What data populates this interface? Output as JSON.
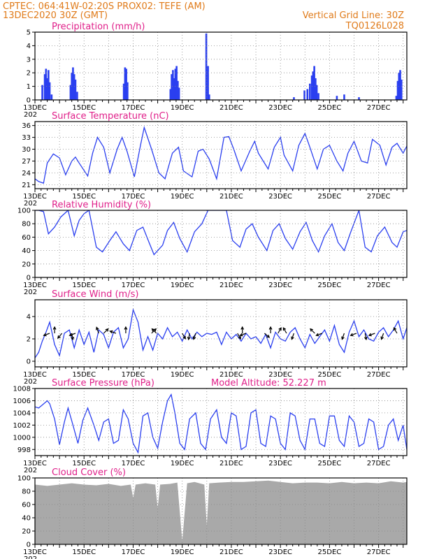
{
  "header": {
    "line1": "CPTEC:    064:41W-02:20S   PROX02: TEFE (AM)",
    "line2": "13DEC2020 30Z (GMT)",
    "grid_note": "Vertical Grid Line: 30Z",
    "run_id": "TQ0126L028"
  },
  "x_axis": {
    "tick_labels": [
      "13DEC",
      "15DEC",
      "17DEC",
      "19DEC",
      "21DEC",
      "23DEC",
      "25DEC",
      "27DEC"
    ],
    "year_label": "202"
  },
  "chart_data": [
    {
      "type": "bar",
      "title": "Precipitation (mm/h)",
      "ylim": [
        0,
        5
      ],
      "yticks": [
        0,
        1,
        2,
        3,
        4,
        5
      ],
      "color": "#2a3ff0",
      "values": [
        [
          0.3,
          1.1
        ],
        [
          0.4,
          1.9
        ],
        [
          0.45,
          2.3
        ],
        [
          0.5,
          1.6
        ],
        [
          0.55,
          2.2
        ],
        [
          0.6,
          1.3
        ],
        [
          0.68,
          0.4
        ],
        [
          1.45,
          1.1
        ],
        [
          1.5,
          2.0
        ],
        [
          1.55,
          2.4
        ],
        [
          1.6,
          1.9
        ],
        [
          1.65,
          1.5
        ],
        [
          1.72,
          0.6
        ],
        [
          3.62,
          1.2
        ],
        [
          3.67,
          2.4
        ],
        [
          3.72,
          2.3
        ],
        [
          3.77,
          1.3
        ],
        [
          5.52,
          0.8
        ],
        [
          5.57,
          1.9
        ],
        [
          5.62,
          2.2
        ],
        [
          5.67,
          1.6
        ],
        [
          5.72,
          2.3
        ],
        [
          5.77,
          2.5
        ],
        [
          5.82,
          1.4
        ],
        [
          5.87,
          0.9
        ],
        [
          6.98,
          4.9
        ],
        [
          7.05,
          2.5
        ],
        [
          7.1,
          0.4
        ],
        [
          10.55,
          0.2
        ],
        [
          10.98,
          0.7
        ],
        [
          11.1,
          0.8
        ],
        [
          11.2,
          1.2
        ],
        [
          11.28,
          1.8
        ],
        [
          11.33,
          2.1
        ],
        [
          11.38,
          2.5
        ],
        [
          11.43,
          1.6
        ],
        [
          11.48,
          1.1
        ],
        [
          11.55,
          0.5
        ],
        [
          12.3,
          0.3
        ],
        [
          12.6,
          0.4
        ],
        [
          13.2,
          0.2
        ],
        [
          14.72,
          0.3
        ],
        [
          14.78,
          1.4
        ],
        [
          14.83,
          2.0
        ],
        [
          14.88,
          2.2
        ],
        [
          14.93,
          1.5
        ]
      ]
    },
    {
      "type": "line",
      "title": "Surface Temperature (nC)",
      "ylim": [
        20,
        37
      ],
      "yticks": [
        21,
        24,
        27,
        30,
        33,
        36
      ],
      "color": "#2a3ff0",
      "x": [
        0,
        0.15,
        0.35,
        0.5,
        0.75,
        1.0,
        1.25,
        1.5,
        1.65,
        1.8,
        2.15,
        2.35,
        2.55,
        2.8,
        3.05,
        3.35,
        3.55,
        3.75,
        4.05,
        4.3,
        4.45,
        4.75,
        5.05,
        5.3,
        5.6,
        5.85,
        6.05,
        6.4,
        6.65,
        6.85,
        7.1,
        7.4,
        7.7,
        7.9,
        8.1,
        8.4,
        8.75,
        8.95,
        9.1,
        9.5,
        9.75,
        10.0,
        10.15,
        10.5,
        10.75,
        11.0,
        11.2,
        11.5,
        11.75,
        12.0,
        12.3,
        12.55,
        12.75,
        13.0,
        13.3,
        13.55,
        13.75,
        14.05,
        14.3,
        14.55,
        14.75,
        15.0,
        15.15
      ],
      "values": [
        22.5,
        21.8,
        21.4,
        26.5,
        28.8,
        27.8,
        23.5,
        27.0,
        28.0,
        26.5,
        23.2,
        29.0,
        33.0,
        30.5,
        24.0,
        30.0,
        33.0,
        29.5,
        23.0,
        31.0,
        35.5,
        30.0,
        24.0,
        22.5,
        29.0,
        30.5,
        24.5,
        23.0,
        29.5,
        30.0,
        27.5,
        22.5,
        33.0,
        33.2,
        30.0,
        24.5,
        29.5,
        32.0,
        29.0,
        25.0,
        30.5,
        33.0,
        28.5,
        24.5,
        31.0,
        34.0,
        30.5,
        25.0,
        30.0,
        31.0,
        27.0,
        24.5,
        29.0,
        32.0,
        27.0,
        26.5,
        32.5,
        31.0,
        26.0,
        30.5,
        31.5,
        29.0,
        30.8
      ]
    },
    {
      "type": "line",
      "title": "Relative Humidity (%)",
      "ylim": [
        0,
        100
      ],
      "yticks": [
        0,
        20,
        40,
        60,
        80,
        100
      ],
      "color": "#2a3ff0",
      "x": [
        0,
        0.15,
        0.35,
        0.55,
        0.8,
        1.05,
        1.35,
        1.6,
        1.8,
        2.0,
        2.2,
        2.5,
        2.75,
        3.05,
        3.3,
        3.6,
        3.85,
        4.15,
        4.4,
        4.65,
        4.85,
        5.2,
        5.4,
        5.65,
        5.9,
        6.2,
        6.5,
        6.8,
        7.05,
        7.35,
        7.55,
        7.8,
        8.05,
        8.35,
        8.6,
        8.85,
        9.1,
        9.45,
        9.7,
        9.95,
        10.2,
        10.5,
        10.8,
        11.05,
        11.3,
        11.55,
        11.8,
        12.1,
        12.35,
        12.6,
        12.85,
        13.2,
        13.45,
        13.7,
        13.95,
        14.25,
        14.55,
        14.75,
        15.0,
        15.15
      ],
      "values": [
        100,
        100,
        98,
        65,
        75,
        90,
        100,
        62,
        85,
        95,
        100,
        45,
        38,
        55,
        68,
        50,
        40,
        70,
        75,
        52,
        34,
        48,
        70,
        82,
        58,
        38,
        68,
        80,
        100,
        100,
        100,
        100,
        55,
        45,
        72,
        80,
        60,
        40,
        70,
        80,
        58,
        42,
        68,
        82,
        55,
        38,
        62,
        80,
        52,
        40,
        66,
        100,
        45,
        38,
        62,
        75,
        52,
        45,
        68,
        70
      ]
    },
    {
      "type": "line",
      "title": "Surface Wind (m/s)",
      "ylim": [
        -0.5,
        5.5
      ],
      "yticks": [
        0,
        2,
        4
      ],
      "color": "#2a3ff0",
      "x": [
        0,
        0.15,
        0.3,
        0.45,
        0.6,
        0.8,
        1.0,
        1.2,
        1.4,
        1.6,
        1.8,
        2.0,
        2.2,
        2.4,
        2.6,
        2.8,
        3.0,
        3.2,
        3.4,
        3.6,
        3.8,
        4.0,
        4.2,
        4.4,
        4.6,
        4.8,
        5.0,
        5.2,
        5.4,
        5.6,
        5.8,
        6.0,
        6.2,
        6.4,
        6.6,
        6.8,
        7.0,
        7.2,
        7.4,
        7.6,
        7.8,
        8.0,
        8.2,
        8.4,
        8.6,
        8.8,
        9.0,
        9.2,
        9.4,
        9.6,
        9.8,
        10.0,
        10.2,
        10.4,
        10.6,
        10.8,
        11.0,
        11.2,
        11.4,
        11.6,
        11.8,
        12.0,
        12.2,
        12.4,
        12.6,
        12.8,
        13.0,
        13.2,
        13.4,
        13.6,
        13.8,
        14.0,
        14.2,
        14.4,
        14.6,
        14.8,
        15.0,
        15.15
      ],
      "values": [
        0.3,
        0.8,
        1.8,
        2.6,
        3.5,
        1.5,
        0.5,
        2.5,
        2.8,
        1.2,
        2.8,
        1.5,
        2.6,
        0.8,
        2.8,
        2.4,
        1.2,
        2.6,
        3.0,
        1.2,
        2.0,
        4.6,
        3.5,
        1.0,
        2.2,
        1.0,
        2.5,
        2.0,
        3.0,
        2.2,
        2.6,
        1.8,
        2.8,
        2.0,
        2.6,
        2.2,
        2.5,
        2.4,
        2.6,
        1.5,
        2.6,
        2.0,
        2.4,
        1.8,
        2.5,
        2.0,
        2.2,
        1.6,
        2.4,
        1.2,
        2.6,
        2.0,
        1.8,
        2.6,
        3.0,
        2.0,
        1.2,
        2.4,
        1.6,
        2.2,
        2.8,
        1.8,
        3.2,
        1.5,
        0.8,
        2.6,
        3.6,
        2.2,
        2.8,
        2.0,
        1.8,
        2.6,
        3.0,
        2.2,
        2.8,
        3.6,
        2.0,
        3.0
      ]
    },
    {
      "type": "line",
      "title": "Surface Pressure (hPa)",
      "annotation": "Model Altitude: 52.227 m",
      "ylim": [
        997,
        1008
      ],
      "yticks": [
        998,
        1000,
        1002,
        1004,
        1006,
        1008
      ],
      "color": "#2a3ff0",
      "x": [
        0,
        0.15,
        0.3,
        0.5,
        0.6,
        0.8,
        1.0,
        1.2,
        1.35,
        1.55,
        1.75,
        1.95,
        2.15,
        2.4,
        2.6,
        2.8,
        3.0,
        3.2,
        3.4,
        3.6,
        3.8,
        4.0,
        4.2,
        4.4,
        4.6,
        4.8,
        5.0,
        5.2,
        5.4,
        5.55,
        5.7,
        5.9,
        6.1,
        6.3,
        6.55,
        6.75,
        6.95,
        7.15,
        7.4,
        7.6,
        7.8,
        8.0,
        8.2,
        8.4,
        8.6,
        8.8,
        9.0,
        9.2,
        9.4,
        9.6,
        9.8,
        10.0,
        10.2,
        10.4,
        10.6,
        10.8,
        11.0,
        11.2,
        11.4,
        11.6,
        11.8,
        12.0,
        12.2,
        12.4,
        12.6,
        12.8,
        13.0,
        13.2,
        13.4,
        13.6,
        13.8,
        14.0,
        14.2,
        14.4,
        14.6,
        14.8,
        15.0,
        15.15
      ],
      "values": [
        1005.0,
        1004.8,
        1005.3,
        1006.0,
        1005.5,
        1003.0,
        998.8,
        1002.5,
        1004.8,
        1002.0,
        999.0,
        1002.8,
        1004.8,
        1002.0,
        999.5,
        1002.5,
        1003.0,
        999.0,
        999.5,
        1004.5,
        1003.0,
        999.0,
        997.5,
        1003.5,
        1004.0,
        1000.0,
        998.2,
        1002.5,
        1006.0,
        1007.0,
        1004.0,
        999.0,
        998.0,
        1003.0,
        1004.0,
        999.0,
        998.0,
        1003.0,
        1004.5,
        1000.0,
        999.0,
        1004.0,
        1003.5,
        998.0,
        998.5,
        1004.0,
        1004.5,
        999.0,
        998.5,
        1003.5,
        1003.0,
        999.0,
        998.0,
        1004.0,
        1003.5,
        999.5,
        998.0,
        1003.0,
        1003.0,
        999.0,
        998.5,
        1003.5,
        1003.5,
        999.5,
        998.5,
        1003.5,
        1002.5,
        998.5,
        999.0,
        1003.0,
        1002.5,
        998.0,
        998.5,
        1002.0,
        1003.0,
        999.5,
        1002.0,
        998.0
      ]
    },
    {
      "type": "area",
      "title": "Cloud Cover (%)",
      "ylim": [
        0,
        100
      ],
      "yticks": [
        0,
        20,
        40,
        60,
        80,
        100
      ],
      "color": "#a9a9a9",
      "x": [
        0,
        0.5,
        1.0,
        1.5,
        2.0,
        2.5,
        3.0,
        3.5,
        3.9,
        4.0,
        4.1,
        4.5,
        4.9,
        5.0,
        5.1,
        5.5,
        5.8,
        6.0,
        6.2,
        6.5,
        6.9,
        7.0,
        7.1,
        7.5,
        8.0,
        8.5,
        9.0,
        9.5,
        10.0,
        10.5,
        11.0,
        11.5,
        12.0,
        12.5,
        13.0,
        13.5,
        14.0,
        14.5,
        15.0,
        15.15
      ],
      "values": [
        90,
        88,
        90,
        92,
        90,
        89,
        91,
        88,
        90,
        70,
        90,
        92,
        90,
        55,
        90,
        91,
        93,
        5,
        92,
        94,
        90,
        28,
        92,
        93,
        94,
        94,
        95,
        96,
        94,
        92,
        93,
        93,
        92,
        94,
        92,
        93,
        92,
        95,
        93,
        94
      ]
    }
  ],
  "wind_arrows": [
    [
      0.6,
      200
    ],
    [
      0.8,
      90
    ],
    [
      1.1,
      230
    ],
    [
      1.5,
      280
    ],
    [
      1.65,
      200
    ],
    [
      2.6,
      110
    ],
    [
      2.8,
      45
    ],
    [
      3.3,
      160
    ],
    [
      3.7,
      90
    ],
    [
      4.75,
      45
    ],
    [
      4.95,
      135
    ],
    [
      6.0,
      300
    ],
    [
      6.3,
      260
    ],
    [
      6.55,
      250
    ],
    [
      8.25,
      300
    ],
    [
      8.45,
      90
    ],
    [
      8.6,
      200
    ],
    [
      9.35,
      320
    ],
    [
      9.6,
      90
    ],
    [
      9.9,
      60
    ],
    [
      10.25,
      120
    ],
    [
      10.55,
      250
    ],
    [
      11.4,
      135
    ],
    [
      11.7,
      200
    ],
    [
      12.6,
      250
    ],
    [
      13.1,
      200
    ],
    [
      13.45,
      280
    ],
    [
      13.85,
      200
    ],
    [
      14.2,
      250
    ],
    [
      14.75,
      120
    ]
  ]
}
